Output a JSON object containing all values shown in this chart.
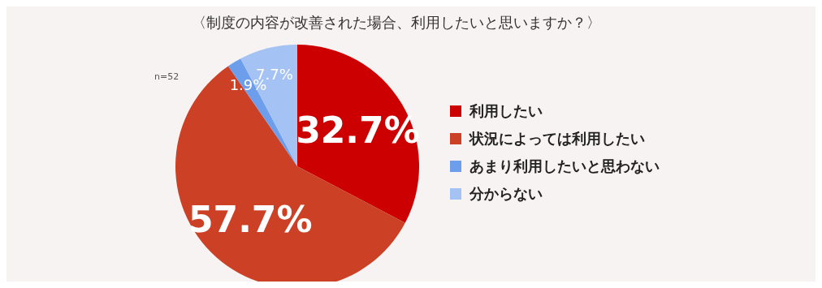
{
  "chart_data": {
    "type": "pie",
    "title": "〈制度の内容が改善された場合、利用したいと思いますか？〉",
    "categories": [
      "利用したい",
      "状況によっては利用したい",
      "あまり利用したいと思わない",
      "分からない"
    ],
    "values": [
      32.7,
      57.7,
      1.9,
      7.7
    ],
    "colors": [
      "#cc0000",
      "#cc4125",
      "#6d9eeb",
      "#a4c2f4"
    ],
    "value_labels": [
      "32.7%",
      "57.7%",
      "1.9%",
      "7.7%"
    ],
    "annotations": [
      "n=52"
    ],
    "legend": "right"
  }
}
